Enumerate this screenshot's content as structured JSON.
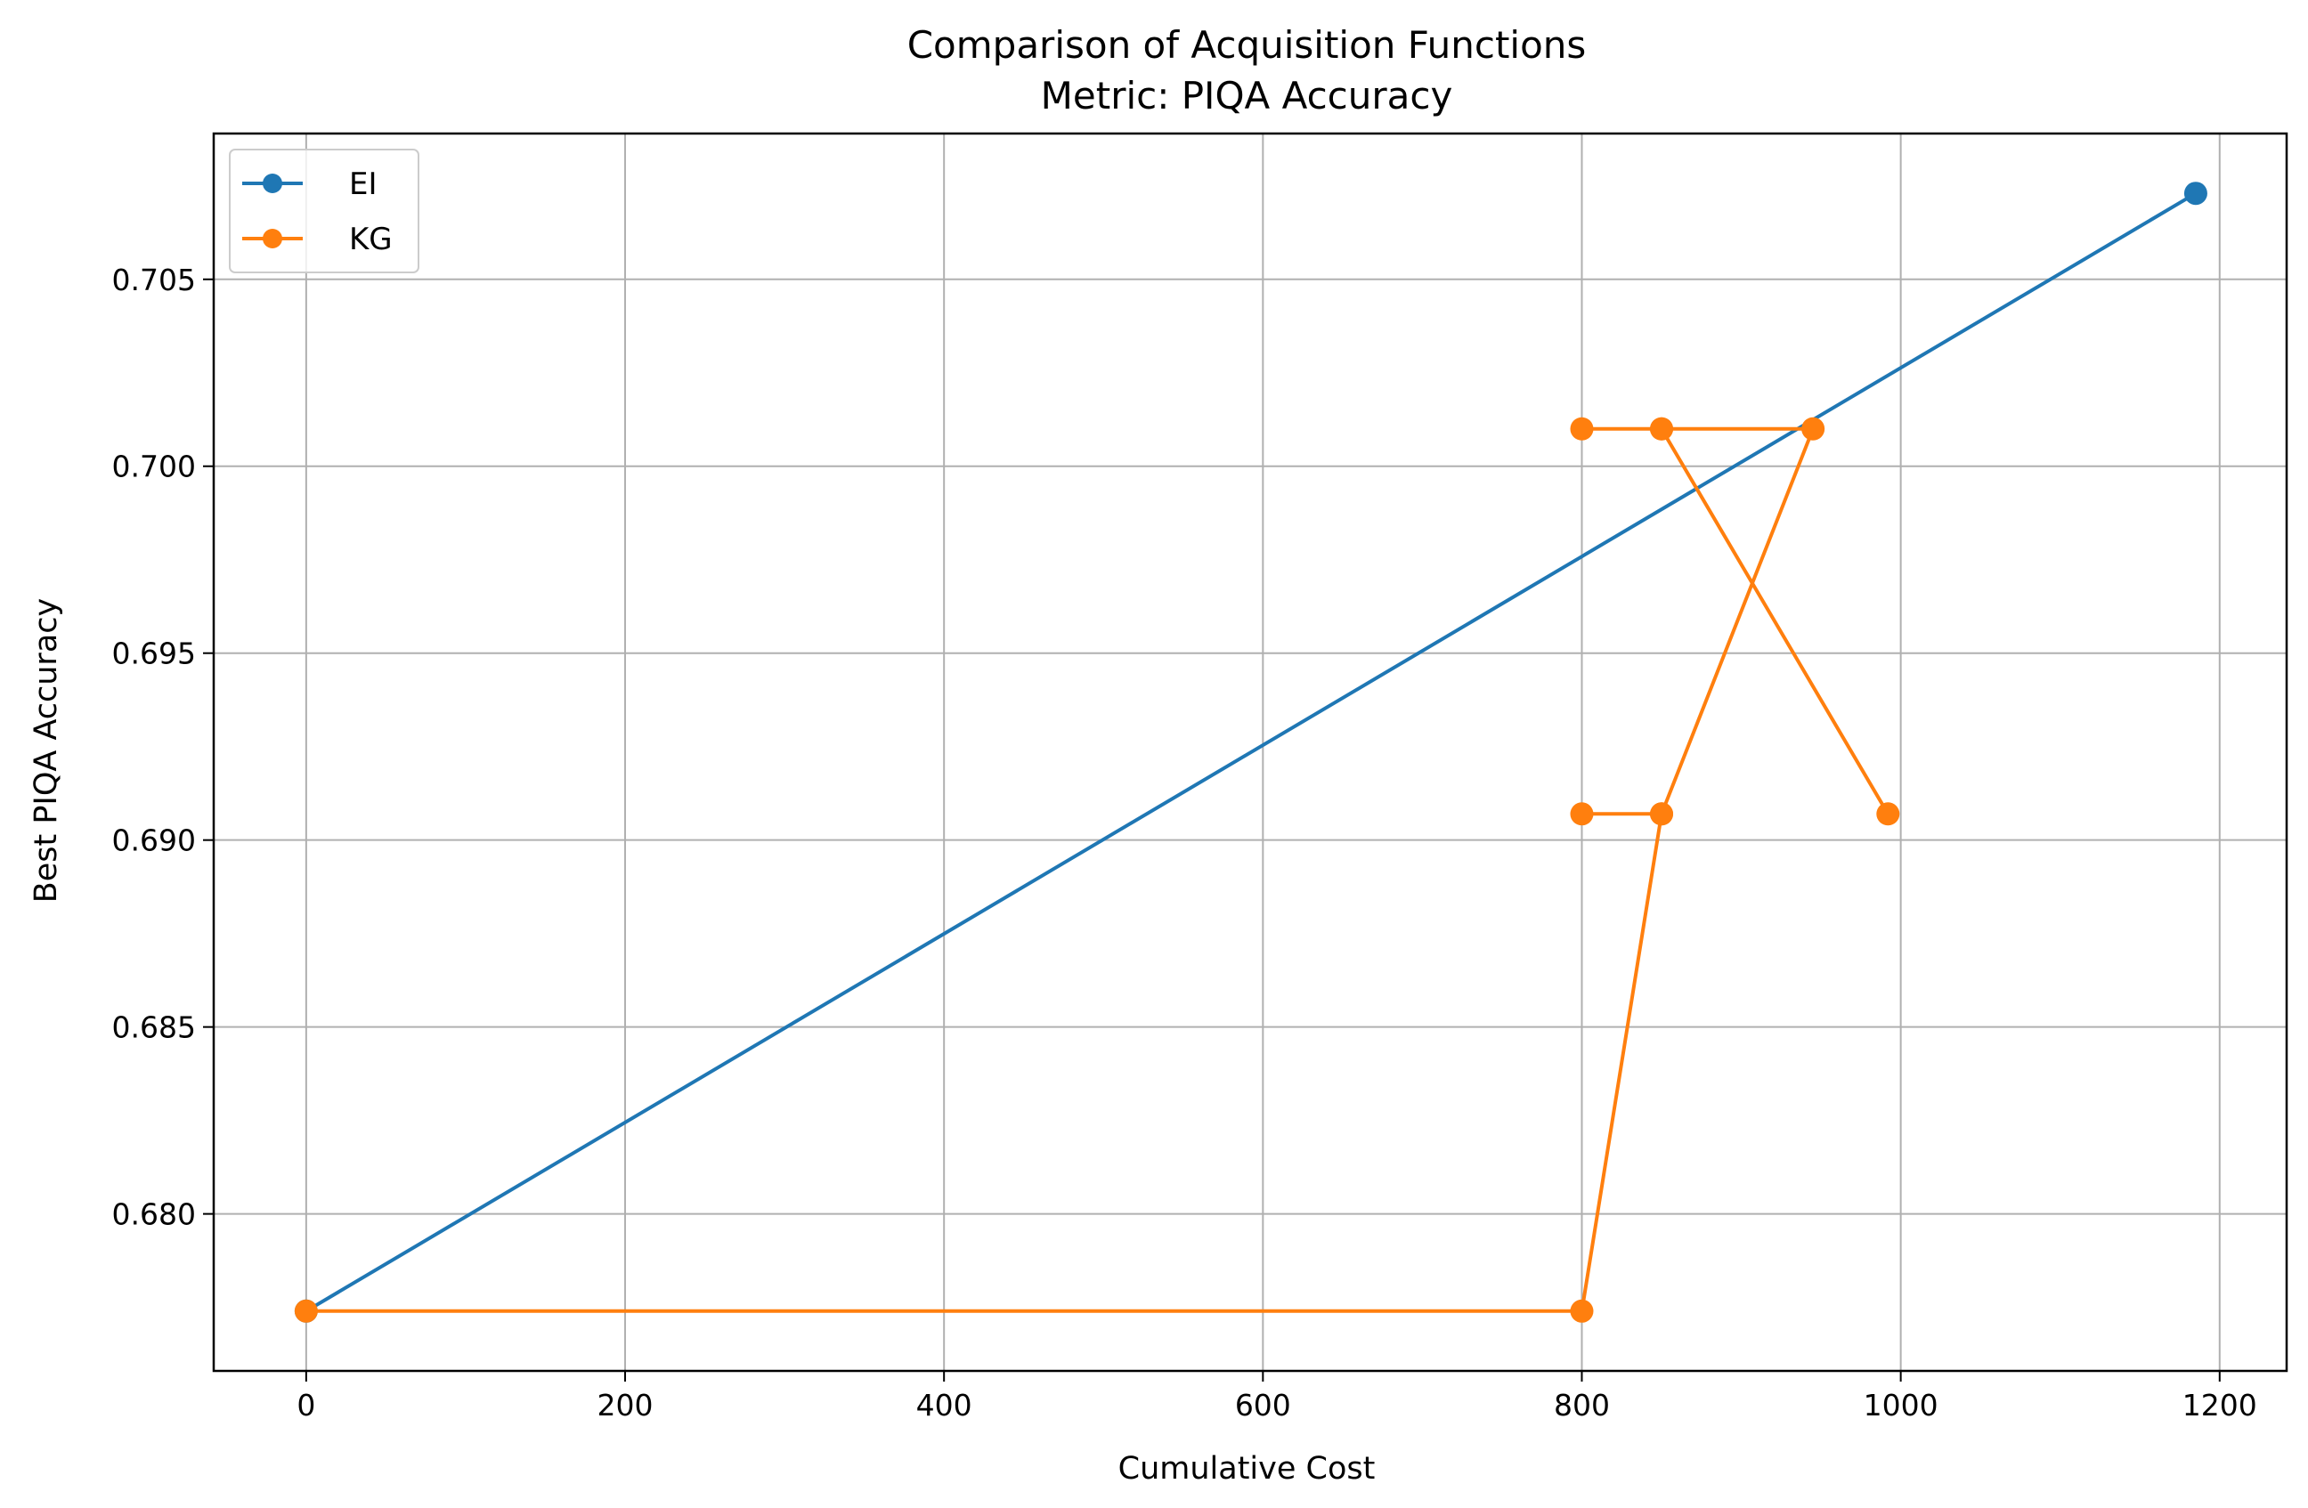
{
  "chart_data": {
    "type": "line",
    "title": "Comparison of Acquisition Functions",
    "subtitle": "Metric: PIQA Accuracy",
    "xlabel": "Cumulative Cost",
    "ylabel": "Best PIQA Accuracy",
    "xlim": [
      -58,
      1242
    ],
    "ylim": [
      0.6758,
      0.7089
    ],
    "xticks": [
      0,
      200,
      400,
      600,
      800,
      1000,
      1200
    ],
    "yticks": [
      0.68,
      0.685,
      0.69,
      0.695,
      0.7,
      0.705
    ],
    "xtick_labels": [
      "0",
      "200",
      "400",
      "600",
      "800",
      "1000",
      "1200"
    ],
    "ytick_labels": [
      "0.680",
      "0.685",
      "0.690",
      "0.695",
      "0.700",
      "0.705"
    ],
    "grid": true,
    "legend_position": "top-left",
    "series": [
      {
        "name": "EI",
        "color": "#1f77b4",
        "marker": "circle",
        "x": [
          0,
          1185
        ],
        "y": [
          0.6774,
          0.7073
        ]
      },
      {
        "name": "KG",
        "color": "#ff7f0e",
        "marker": "circle",
        "x": [
          0,
          800,
          850,
          800,
          850,
          945,
          850,
          992,
          850,
          800
        ],
        "y": [
          0.6774,
          0.6774,
          0.6907,
          0.6907,
          0.6907,
          0.701,
          0.701,
          0.6907,
          0.701,
          0.701
        ]
      }
    ]
  }
}
